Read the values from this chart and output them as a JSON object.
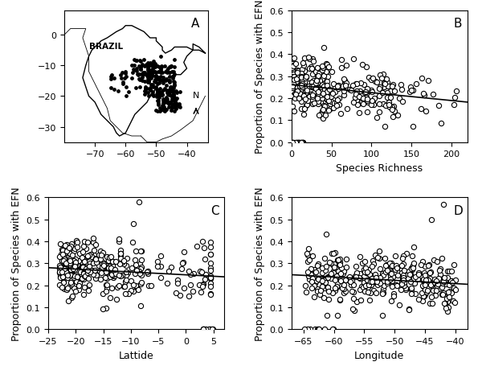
{
  "panel_labels": [
    "A",
    "B",
    "C",
    "D"
  ],
  "map_xlim": [
    -80,
    -33
  ],
  "map_ylim": [
    -35,
    8
  ],
  "map_xticks": [
    -70,
    -60,
    -50,
    -40
  ],
  "map_yticks": [
    -30,
    -20,
    -10,
    0
  ],
  "scatter_ylim": [
    0,
    0.6
  ],
  "scatter_yticks": [
    0.0,
    0.1,
    0.2,
    0.3,
    0.4,
    0.5,
    0.6
  ],
  "panel_B": {
    "xlabel": "Species Richness",
    "ylabel": "Proportion of Species with EFN",
    "xlim": [
      0,
      220
    ],
    "xticks": [
      0,
      50,
      100,
      150,
      200
    ],
    "regression": [
      0.261,
      -0.00036
    ]
  },
  "panel_C": {
    "xlabel": "Lattide",
    "ylabel": "Proportion of Species with EFN",
    "xlim": [
      -25,
      7
    ],
    "xticks": [
      -25,
      -20,
      -15,
      -10,
      -5,
      0,
      5
    ],
    "regression": [
      0.248,
      -0.0013
    ]
  },
  "panel_D": {
    "xlabel": "Longitude",
    "ylabel": "Proportion of Species with EFN",
    "xlim": [
      -67,
      -38
    ],
    "xticks": [
      -65,
      -60,
      -55,
      -50,
      -45,
      -40
    ],
    "regression": [
      0.148,
      -0.0015
    ]
  },
  "marker_size": 20,
  "marker_color": "white",
  "marker_edgecolor": "black",
  "marker_linewidth": 0.8,
  "regression_color": "black",
  "regression_linewidth": 1.2,
  "font_size_label": 9,
  "font_size_tick": 8,
  "font_size_panel": 11
}
